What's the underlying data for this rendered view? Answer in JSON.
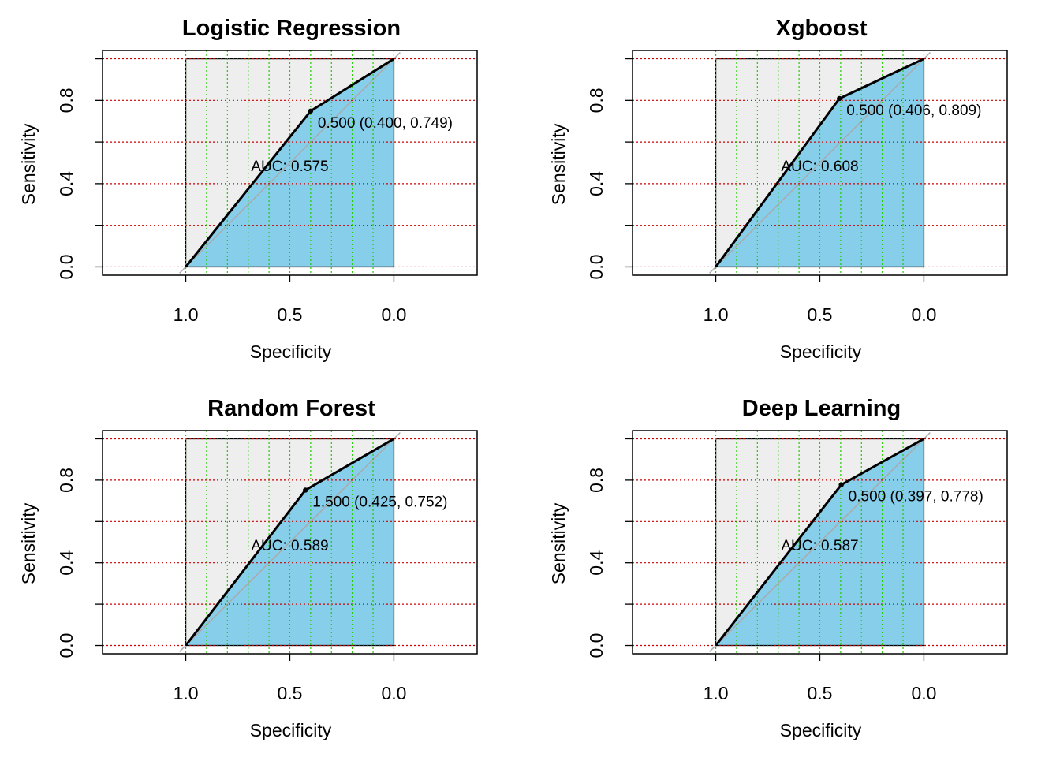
{
  "colors": {
    "background": "#ffffff",
    "roc_line": "#000000",
    "auc_fill": "#87CEEB",
    "upper_fill": "#EEEEEE",
    "diagonal": "#AAAAAA",
    "grid_horizontal": "#CC0000",
    "grid_vertical": "#22CC00",
    "frame": "#000000"
  },
  "chart_data": [
    {
      "type": "line",
      "title": "Logistic Regression",
      "xlabel": "Specificity",
      "ylabel": "Sensitivity",
      "x_axis_reversed": true,
      "xlim": [
        1.4,
        -0.4
      ],
      "ylim": [
        -0.04,
        1.04
      ],
      "x_ticks": [
        1.0,
        0.5,
        0.0
      ],
      "x_tick_labels": [
        "1.0",
        "0.5",
        "0.0"
      ],
      "y_ticks": [
        0.0,
        0.4,
        0.8
      ],
      "y_tick_labels": [
        "0.0",
        "0.4",
        "0.8"
      ],
      "grid": true,
      "grid_h": [
        0.0,
        0.2,
        0.4,
        0.6,
        0.8,
        1.0
      ],
      "grid_v": [
        1.0,
        0.9,
        0.8,
        0.7,
        0.6,
        0.5,
        0.4,
        0.3,
        0.2,
        0.1,
        0.0
      ],
      "series": [
        {
          "specificity": [
            1.0,
            0.4,
            0.0
          ],
          "sensitivity": [
            0.0,
            0.749,
            1.0
          ]
        }
      ],
      "threshold_point": {
        "specificity": 0.4,
        "sensitivity": 0.749,
        "label": "0.500 (0.400, 0.749)"
      },
      "auc_label": "AUC: 0.575"
    },
    {
      "type": "line",
      "title": "Xgboost",
      "xlabel": "Specificity",
      "ylabel": "Sensitivity",
      "x_axis_reversed": true,
      "xlim": [
        1.4,
        -0.4
      ],
      "ylim": [
        -0.04,
        1.04
      ],
      "x_ticks": [
        1.0,
        0.5,
        0.0
      ],
      "x_tick_labels": [
        "1.0",
        "0.5",
        "0.0"
      ],
      "y_ticks": [
        0.0,
        0.4,
        0.8
      ],
      "y_tick_labels": [
        "0.0",
        "0.4",
        "0.8"
      ],
      "grid": true,
      "grid_h": [
        0.0,
        0.2,
        0.4,
        0.6,
        0.8,
        1.0
      ],
      "grid_v": [
        1.0,
        0.9,
        0.8,
        0.7,
        0.6,
        0.5,
        0.4,
        0.3,
        0.2,
        0.1,
        0.0
      ],
      "series": [
        {
          "specificity": [
            1.0,
            0.406,
            0.0
          ],
          "sensitivity": [
            0.0,
            0.809,
            1.0
          ]
        }
      ],
      "threshold_point": {
        "specificity": 0.406,
        "sensitivity": 0.809,
        "label": "0.500 (0.406, 0.809)"
      },
      "auc_label": "AUC: 0.608"
    },
    {
      "type": "line",
      "title": "Random Forest",
      "xlabel": "Specificity",
      "ylabel": "Sensitivity",
      "x_axis_reversed": true,
      "xlim": [
        1.4,
        -0.4
      ],
      "ylim": [
        -0.04,
        1.04
      ],
      "x_ticks": [
        1.0,
        0.5,
        0.0
      ],
      "x_tick_labels": [
        "1.0",
        "0.5",
        "0.0"
      ],
      "y_ticks": [
        0.0,
        0.4,
        0.8
      ],
      "y_tick_labels": [
        "0.0",
        "0.4",
        "0.8"
      ],
      "grid": true,
      "grid_h": [
        0.0,
        0.2,
        0.4,
        0.6,
        0.8,
        1.0
      ],
      "grid_v": [
        1.0,
        0.9,
        0.8,
        0.7,
        0.6,
        0.5,
        0.4,
        0.3,
        0.2,
        0.1,
        0.0
      ],
      "series": [
        {
          "specificity": [
            1.0,
            0.425,
            0.0
          ],
          "sensitivity": [
            0.0,
            0.752,
            1.0
          ]
        }
      ],
      "threshold_point": {
        "specificity": 0.425,
        "sensitivity": 0.752,
        "label": "1.500 (0.425, 0.752)"
      },
      "auc_label": "AUC: 0.589"
    },
    {
      "type": "line",
      "title": "Deep Learning",
      "xlabel": "Specificity",
      "ylabel": "Sensitivity",
      "x_axis_reversed": true,
      "xlim": [
        1.4,
        -0.4
      ],
      "ylim": [
        -0.04,
        1.04
      ],
      "x_ticks": [
        1.0,
        0.5,
        0.0
      ],
      "x_tick_labels": [
        "1.0",
        "0.5",
        "0.0"
      ],
      "y_ticks": [
        0.0,
        0.4,
        0.8
      ],
      "y_tick_labels": [
        "0.0",
        "0.4",
        "0.8"
      ],
      "grid": true,
      "grid_h": [
        0.0,
        0.2,
        0.4,
        0.6,
        0.8,
        1.0
      ],
      "grid_v": [
        1.0,
        0.9,
        0.8,
        0.7,
        0.6,
        0.5,
        0.4,
        0.3,
        0.2,
        0.1,
        0.0
      ],
      "series": [
        {
          "specificity": [
            1.0,
            0.397,
            0.0
          ],
          "sensitivity": [
            0.0,
            0.778,
            1.0
          ]
        }
      ],
      "threshold_point": {
        "specificity": 0.397,
        "sensitivity": 0.778,
        "label": "0.500 (0.397, 0.778)"
      },
      "auc_label": "AUC: 0.587"
    }
  ]
}
